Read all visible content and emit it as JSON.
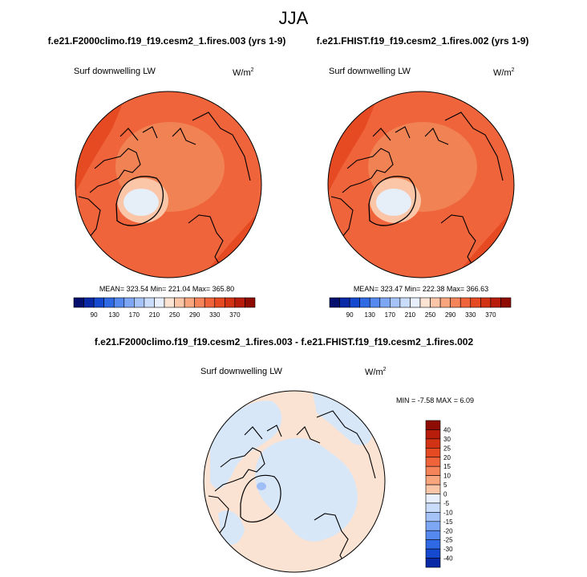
{
  "page_title": "JJA",
  "colors": {
    "warm_levels": [
      "#fde3d4",
      "#fbc5a8",
      "#f9a57e",
      "#f6845a",
      "#f0643c",
      "#e54a22",
      "#d33315",
      "#b81d0c",
      "#8f0c05"
    ],
    "cool_levels": [
      "#05106e",
      "#0a29a6",
      "#1549cf",
      "#2f6ae4",
      "#5689ef",
      "#7da6f4",
      "#a6c3f8",
      "#cadcfb",
      "#e8f0fd"
    ],
    "arctic_ocean": "#f08253",
    "ice_center": "#e6eef8",
    "diff_pos": "#fbe3d4",
    "diff_neg": "#d7e7f8"
  },
  "chart_data": [
    {
      "type": "heatmap",
      "projection": "polar-stereographic-north",
      "title": "f.e21.F2000climo.f19_f19.cesm2_1.fires.003 (yrs 1-9)",
      "variable": "Surf downwelling LW",
      "units": "W/m",
      "units_exp": "2",
      "stats": "MEAN= 323.54  Min= 221.04  Max= 365.80",
      "colorbar_ticks": [
        "90",
        "130",
        "170",
        "210",
        "250",
        "290",
        "330",
        "370"
      ]
    },
    {
      "type": "heatmap",
      "projection": "polar-stereographic-north",
      "title": "f.e21.FHIST.f19_f19.cesm2_1.fires.002 (yrs 1-9)",
      "variable": "Surf downwelling LW",
      "units": "W/m",
      "units_exp": "2",
      "stats": "MEAN= 323.47  Min= 222.38  Max= 366.63",
      "colorbar_ticks": [
        "90",
        "130",
        "170",
        "210",
        "250",
        "290",
        "330",
        "370"
      ]
    },
    {
      "type": "heatmap",
      "projection": "polar-stereographic-north",
      "title": "f.e21.F2000climo.f19_f19.cesm2_1.fires.003 - f.e21.FHIST.f19_f19.cesm2_1.fires.002",
      "variable": "Surf downwelling LW",
      "units": "W/m",
      "units_exp": "2",
      "stats": "MIN =  -7.58 MAX =   6.09",
      "colorbar_ticks": [
        "40",
        "30",
        "25",
        "20",
        "15",
        "10",
        "5",
        "0",
        "-5",
        "-10",
        "-15",
        "-20",
        "-25",
        "-30",
        "-40"
      ]
    }
  ]
}
